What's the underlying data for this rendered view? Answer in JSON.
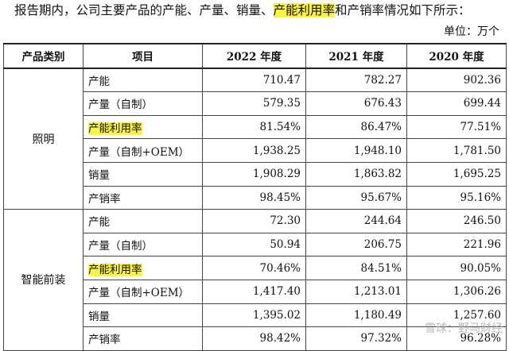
{
  "intro": {
    "before": "报告期内，公司主要产品的产能、产量、销量、",
    "highlight": "产能利用率",
    "after": "和产销率情况如下所示："
  },
  "unit_label": "单位：万个",
  "table": {
    "headers": [
      "产品类别",
      "项目",
      "2022 年度",
      "2021 年度",
      "2020 年度"
    ],
    "groups": [
      {
        "category": "照明",
        "rows": [
          {
            "item": "产能",
            "v2022": "710.47",
            "v2021": "782.27",
            "v2020": "902.36"
          },
          {
            "item": "产量（自制）",
            "v2022": "579.35",
            "v2021": "676.43",
            "v2020": "699.44"
          },
          {
            "item": "产能利用率",
            "v2022": "81.54%",
            "v2021": "86.47%",
            "v2020": "77.51%"
          },
          {
            "item": "产量（自制+OEM）",
            "v2022": "1,938.25",
            "v2021": "1,948.10",
            "v2020": "1,781.50"
          },
          {
            "item": "销量",
            "v2022": "1,908.29",
            "v2021": "1,863.82",
            "v2020": "1,695.25"
          },
          {
            "item": "产销率",
            "v2022": "98.45%",
            "v2021": "95.67%",
            "v2020": "95.16%"
          }
        ]
      },
      {
        "category": "智能前装",
        "rows": [
          {
            "item": "产能",
            "v2022": "72.30",
            "v2021": "244.64",
            "v2020": "246.50"
          },
          {
            "item": "产量（自制）",
            "v2022": "50.94",
            "v2021": "206.75",
            "v2020": "221.96"
          },
          {
            "item": "产能利用率",
            "v2022": "70.46%",
            "v2021": "84.51%",
            "v2020": "90.05%"
          },
          {
            "item": "产量（自制+OEM）",
            "v2022": "1,417.40",
            "v2021": "1,213.01",
            "v2020": "1,306.26"
          },
          {
            "item": "销量",
            "v2022": "1,395.02",
            "v2021": "1,180.49",
            "v2020": "1,257.60"
          },
          {
            "item": "产销率",
            "v2022": "98.42%",
            "v2021": "97.32%",
            "v2020": "96.28%"
          }
        ]
      }
    ]
  },
  "watermark": "雪球：野马财经",
  "colors": {
    "highlight": "#fbf24a",
    "border": "#444444"
  }
}
